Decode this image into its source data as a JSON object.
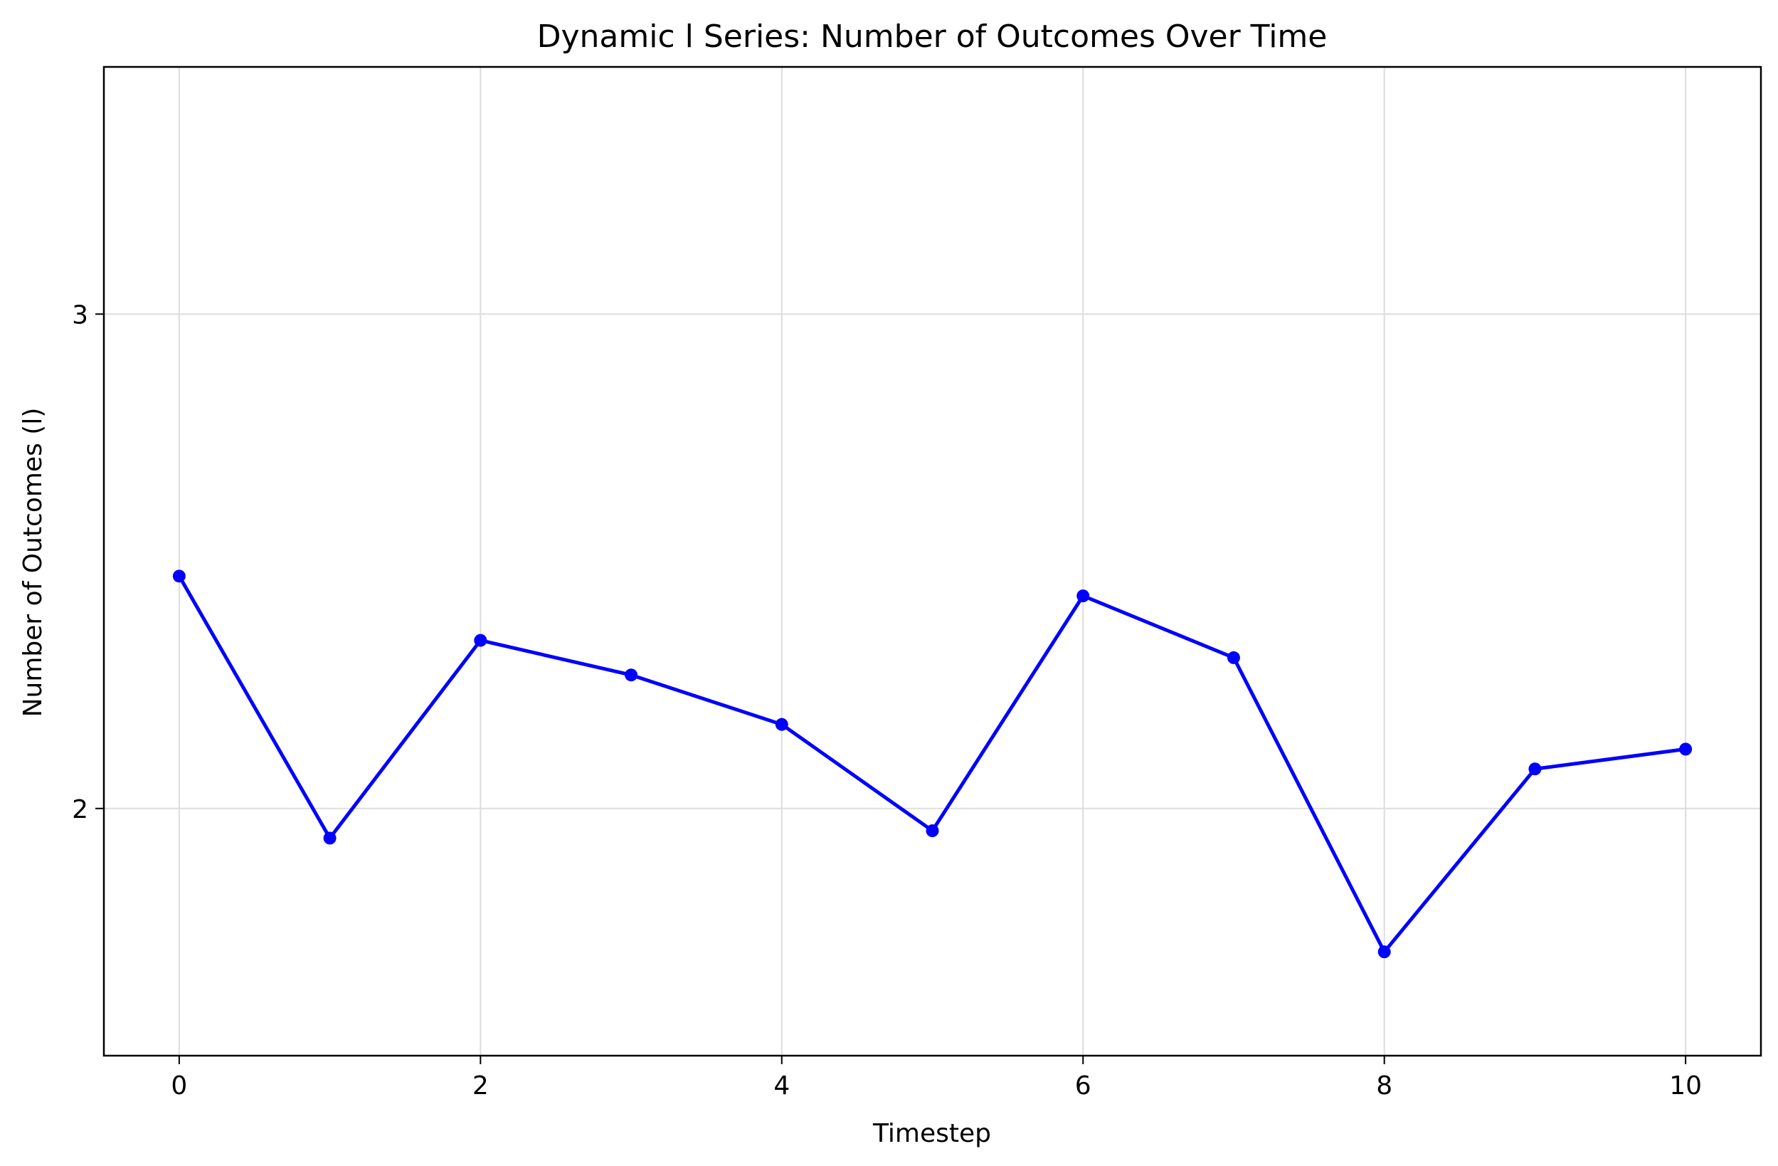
{
  "chart_data": {
    "type": "line",
    "title": "Dynamic l Series: Number of Outcomes Over Time",
    "xlabel": "Timestep",
    "ylabel": "Number of Outcomes (l)",
    "xlim": [
      -0.5,
      10.5
    ],
    "ylim": [
      1.5,
      3.5
    ],
    "x_ticks": [
      0,
      2,
      4,
      6,
      8,
      10
    ],
    "y_ticks": [
      2,
      3
    ],
    "grid": true,
    "series": [
      {
        "color": "#0000ff",
        "marker": "circle",
        "x": [
          0,
          1,
          2,
          3,
          4,
          5,
          6,
          7,
          8,
          9,
          10
        ],
        "y": [
          2.47,
          1.94,
          2.34,
          2.27,
          2.17,
          1.955,
          2.43,
          2.305,
          1.71,
          2.08,
          2.12
        ]
      }
    ]
  }
}
